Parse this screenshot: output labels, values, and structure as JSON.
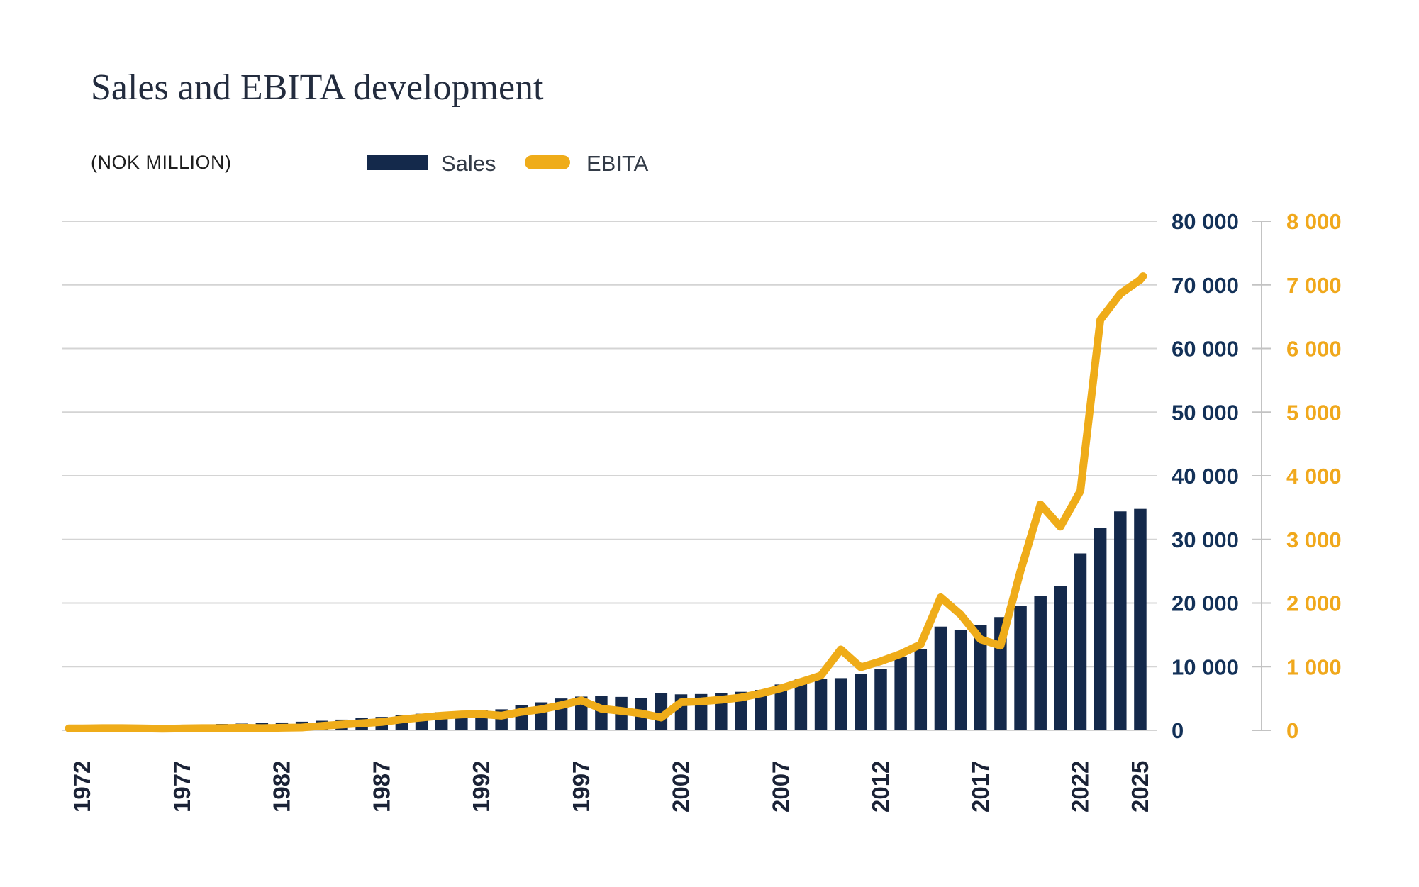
{
  "header": {
    "title": "Sales and EBITA development",
    "subtitle": "(NOK MILLION)"
  },
  "legend": {
    "items": [
      {
        "label": "Sales",
        "color": "#14294b",
        "shape": "rect"
      },
      {
        "label": "EBITA",
        "color": "#efac19",
        "shape": "pill"
      }
    ]
  },
  "colors": {
    "bar_navy": "#14294b",
    "line_yellow": "#efac19",
    "sales_axis_label": "#133158",
    "ebita_axis_label": "#f0a81c",
    "year_label": "#1a2236",
    "gridline": "#d4d4d4",
    "axis_line": "#c3c3c3"
  },
  "chart_data": {
    "type": "bar+line",
    "title": "Sales and EBITA development",
    "subtitle": "(NOK MILLION)",
    "xlabel": "",
    "ylabel_left": "",
    "grid": true,
    "legend_position": "top",
    "x": [
      1972,
      1973,
      1974,
      1975,
      1976,
      1977,
      1978,
      1979,
      1980,
      1981,
      1982,
      1983,
      1984,
      1985,
      1986,
      1987,
      1988,
      1989,
      1990,
      1991,
      1992,
      1993,
      1994,
      1995,
      1996,
      1997,
      1998,
      1999,
      2000,
      2001,
      2002,
      2003,
      2004,
      2005,
      2006,
      2007,
      2008,
      2009,
      2010,
      2011,
      2012,
      2013,
      2014,
      2015,
      2016,
      2017,
      2018,
      2019,
      2020,
      2021,
      2022,
      2023,
      2024,
      2025
    ],
    "x_tick_years": [
      1972,
      1977,
      1982,
      1987,
      1992,
      1997,
      2002,
      2007,
      2012,
      2017,
      2022,
      2025
    ],
    "series": [
      {
        "name": "Sales",
        "type": "bar",
        "axis": "sales",
        "color": "#14294b",
        "values": [
          400,
          470,
          540,
          620,
          720,
          850,
          940,
          1000,
          1060,
          1140,
          1230,
          1350,
          1500,
          1680,
          1900,
          2100,
          2400,
          2600,
          2850,
          2870,
          3150,
          3300,
          3900,
          4400,
          5000,
          5300,
          5450,
          5250,
          5100,
          5900,
          5650,
          5700,
          5800,
          6050,
          6350,
          7200,
          8000,
          8100,
          8200,
          8900,
          9600,
          11500,
          12800,
          16300,
          15800,
          16500,
          17800,
          19600,
          21100,
          22700,
          27800,
          31800,
          34400,
          34800
        ]
      },
      {
        "name": "EBITA",
        "type": "line",
        "axis": "ebita",
        "color": "#efac19",
        "values": [
          30,
          35,
          35,
          30,
          25,
          30,
          35,
          35,
          40,
          35,
          40,
          45,
          70,
          90,
          110,
          130,
          170,
          200,
          230,
          250,
          255,
          230,
          290,
          330,
          395,
          470,
          340,
          305,
          265,
          200,
          440,
          455,
          480,
          515,
          580,
          660,
          760,
          860,
          1270,
          990,
          1085,
          1200,
          1350,
          2090,
          1820,
          1430,
          1330,
          2500,
          3550,
          3200,
          3760,
          6450,
          6860,
          7080
        ]
      }
    ],
    "sales_axis": {
      "min": 0,
      "max": 80000,
      "step": 10000,
      "tick_labels": [
        "0",
        "10 000",
        "20 000",
        "30 000",
        "40 000",
        "50 000",
        "60 000",
        "70 000",
        "80 000"
      ]
    },
    "ebita_axis": {
      "min": 0,
      "max": 8000,
      "step": 1000,
      "tick_labels": [
        "0",
        "1 000",
        "2 000",
        "3 000",
        "4 000",
        "5 000",
        "6 000",
        "7 000",
        "8 000"
      ]
    }
  }
}
